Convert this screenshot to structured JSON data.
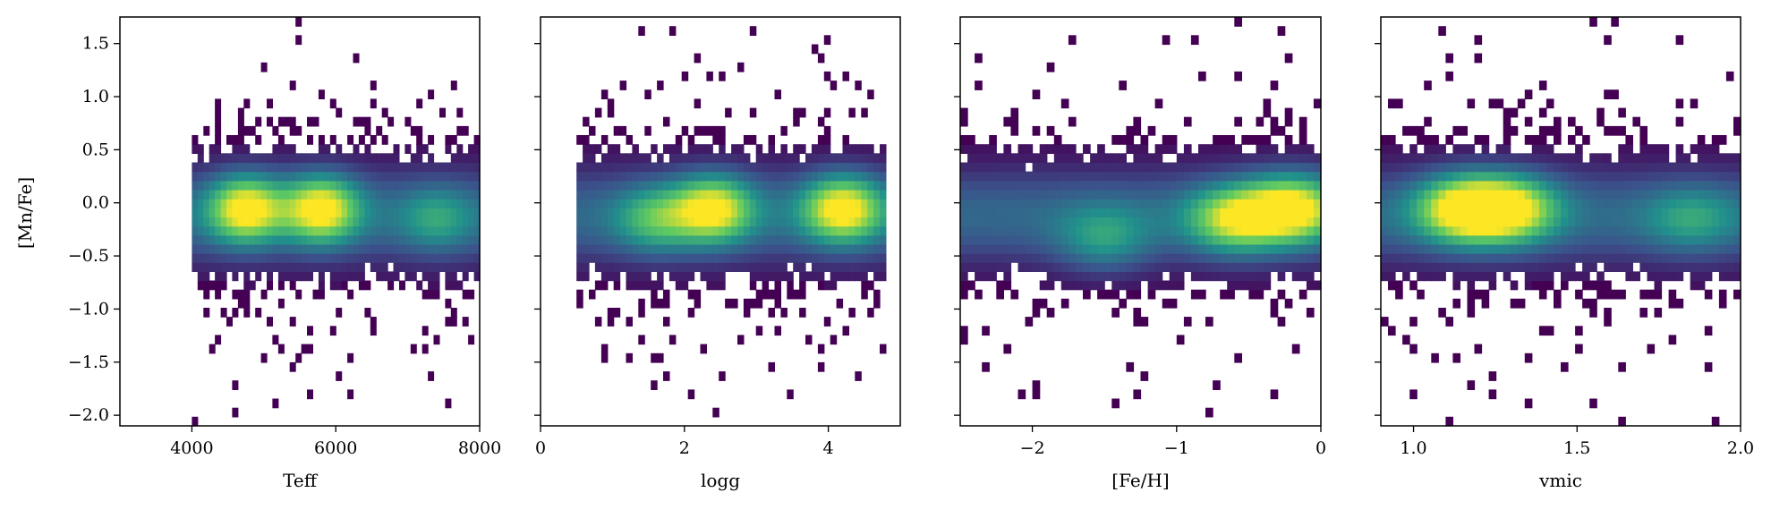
{
  "figure": {
    "ylabel": "[Mn/Fe]",
    "colormap": "viridis",
    "colors": [
      "#440154",
      "#3b528b",
      "#21918c",
      "#5ec962",
      "#fde725"
    ]
  },
  "chart_data": [
    {
      "type": "heatmap",
      "xlabel": "Teff",
      "ylabel": "[Mn/Fe]",
      "xlim": [
        3000,
        8000
      ],
      "ylim": [
        -2.1,
        1.75
      ],
      "xticks": [
        4000,
        6000,
        8000
      ],
      "xtick_labels": [
        "4000",
        "6000",
        "8000"
      ],
      "yticks": [
        -2.0,
        -1.5,
        -1.0,
        -0.5,
        0.0,
        0.5,
        1.0,
        1.5
      ],
      "ytick_labels": [
        "−2.0",
        "−1.5",
        "−1.0",
        "−0.5",
        "0.0",
        "0.5",
        "1.0",
        "1.5"
      ],
      "data_xrange": [
        4000,
        8000
      ],
      "bins_x": 50,
      "bins_y": 45,
      "density_peaks": [
        {
          "x": 4750,
          "y": -0.05,
          "weight": 1.0
        },
        {
          "x": 5800,
          "y": -0.05,
          "weight": 1.0
        },
        {
          "x": 7400,
          "y": -0.15,
          "weight": 0.35
        }
      ]
    },
    {
      "type": "heatmap",
      "xlabel": "logg",
      "ylabel": "[Mn/Fe]",
      "xlim": [
        0,
        5
      ],
      "ylim": [
        -2.1,
        1.75
      ],
      "xticks": [
        0,
        2,
        4
      ],
      "xtick_labels": [
        "0",
        "2",
        "4"
      ],
      "yticks": [
        -2.0,
        -1.5,
        -1.0,
        -0.5,
        0.0,
        0.5,
        1.0,
        1.5
      ],
      "data_xrange": [
        0.5,
        4.8
      ],
      "bins_x": 50,
      "bins_y": 45,
      "density_peaks": [
        {
          "x": 2.4,
          "y": -0.05,
          "weight": 0.95
        },
        {
          "x": 4.2,
          "y": -0.05,
          "weight": 1.0
        },
        {
          "x": 1.6,
          "y": -0.15,
          "weight": 0.5
        }
      ]
    },
    {
      "type": "heatmap",
      "xlabel": "[Fe/H]",
      "ylabel": "[Mn/Fe]",
      "xlim": [
        -2.5,
        0
      ],
      "ylim": [
        -2.1,
        1.75
      ],
      "xticks": [
        -2,
        -1,
        0
      ],
      "xtick_labels": [
        "−2",
        "−1",
        "0"
      ],
      "yticks": [
        -2.0,
        -1.5,
        -1.0,
        -0.5,
        0.0,
        0.5,
        1.0,
        1.5
      ],
      "data_xrange": [
        -2.5,
        0
      ],
      "bins_x": 50,
      "bins_y": 45,
      "density_peaks": [
        {
          "x": -0.2,
          "y": -0.05,
          "weight": 1.0
        },
        {
          "x": -0.6,
          "y": -0.15,
          "weight": 0.8
        },
        {
          "x": -1.5,
          "y": -0.35,
          "weight": 0.4
        }
      ]
    },
    {
      "type": "heatmap",
      "xlabel": "vmic",
      "ylabel": "[Mn/Fe]",
      "xlim": [
        0.9,
        2.0
      ],
      "ylim": [
        -2.1,
        1.75
      ],
      "xticks": [
        1.0,
        1.5,
        2.0
      ],
      "xtick_labels": [
        "1.0",
        "1.5",
        "2.0"
      ],
      "yticks": [
        -2.0,
        -1.5,
        -1.0,
        -0.5,
        0.0,
        0.5,
        1.0,
        1.5
      ],
      "data_xrange": [
        0.9,
        2.0
      ],
      "bins_x": 50,
      "bins_y": 45,
      "density_peaks": [
        {
          "x": 1.15,
          "y": -0.05,
          "weight": 1.0
        },
        {
          "x": 1.3,
          "y": -0.05,
          "weight": 0.9
        },
        {
          "x": 1.85,
          "y": -0.15,
          "weight": 0.35
        }
      ]
    }
  ]
}
